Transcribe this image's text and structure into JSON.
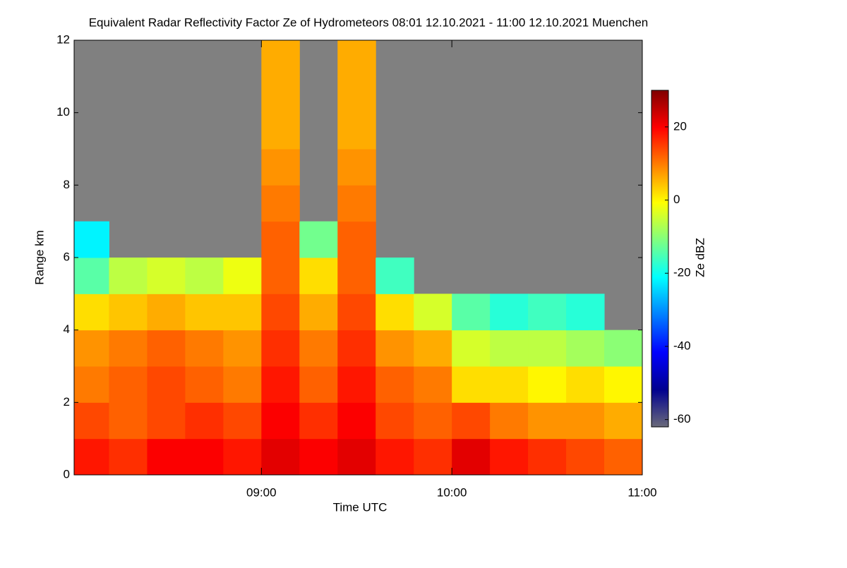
{
  "chart_data": {
    "type": "heatmap",
    "title": "Equivalent Radar Reflectivity Factor Ze of Hydrometeors   08:01 12.10.2021 - 11:00 12.10.2021 Muenchen",
    "x_label": "Time UTC",
    "y_label": "Range km",
    "colorbar_label": "Ze dBZ",
    "x": [
      8.1,
      8.3,
      8.5,
      8.7,
      8.9,
      9.1,
      9.3,
      9.5,
      9.7,
      9.9,
      10.1,
      10.3,
      10.5,
      10.7,
      10.9
    ],
    "y": [
      0.5,
      1.5,
      2.5,
      3.5,
      4.5,
      5.5,
      6.5,
      7.5,
      8.5,
      9.5,
      10.5,
      11.5
    ],
    "values": [
      [
        18,
        16,
        20,
        20,
        18,
        22,
        20,
        22,
        18,
        16,
        22,
        18,
        16,
        14,
        12
      ],
      [
        14,
        12,
        14,
        16,
        14,
        20,
        16,
        20,
        14,
        12,
        14,
        10,
        8,
        8,
        6
      ],
      [
        10,
        12,
        14,
        12,
        10,
        18,
        12,
        18,
        12,
        10,
        2,
        2,
        0,
        2,
        0
      ],
      [
        8,
        10,
        12,
        10,
        8,
        16,
        10,
        16,
        8,
        6,
        -4,
        -6,
        -6,
        -8,
        -10
      ],
      [
        2,
        4,
        6,
        4,
        4,
        14,
        6,
        14,
        2,
        -4,
        -14,
        -18,
        -16,
        -18,
        null
      ],
      [
        -14,
        -6,
        -4,
        -6,
        -2,
        12,
        2,
        12,
        -16,
        null,
        null,
        null,
        null,
        null,
        null
      ],
      [
        -22,
        null,
        null,
        null,
        null,
        12,
        -12,
        12,
        null,
        null,
        null,
        null,
        null,
        null,
        null
      ],
      [
        null,
        null,
        null,
        null,
        null,
        10,
        null,
        10,
        null,
        null,
        null,
        null,
        null,
        null,
        null
      ],
      [
        null,
        null,
        null,
        null,
        null,
        8,
        null,
        8,
        null,
        null,
        null,
        null,
        null,
        null,
        null
      ],
      [
        null,
        null,
        null,
        null,
        null,
        6,
        null,
        6,
        null,
        null,
        null,
        null,
        null,
        null,
        null
      ],
      [
        null,
        null,
        null,
        null,
        null,
        6,
        null,
        6,
        null,
        null,
        null,
        null,
        null,
        null,
        null
      ],
      [
        null,
        null,
        null,
        null,
        null,
        6,
        null,
        6,
        null,
        null,
        null,
        null,
        null,
        null,
        null
      ]
    ],
    "xlim": [
      8.0167,
      11.0
    ],
    "xticks": [
      {
        "value": 9,
        "label": "09:00"
      },
      {
        "value": 10,
        "label": "10:00"
      },
      {
        "value": 11,
        "label": "11:00"
      }
    ],
    "ylim": [
      0,
      12
    ],
    "yticks": [
      0,
      2,
      4,
      6,
      8,
      10,
      12
    ],
    "zlim": [
      -62,
      30
    ],
    "zticks": [
      -60,
      -40,
      -20,
      0,
      20
    ],
    "missing_color": "#808080",
    "colormap": [
      "#6a6a7a",
      "#000090",
      "#0000ff",
      "#0080ff",
      "#00ffff",
      "#80ff80",
      "#ffff00",
      "#ff8000",
      "#ff0000",
      "#800000"
    ]
  }
}
